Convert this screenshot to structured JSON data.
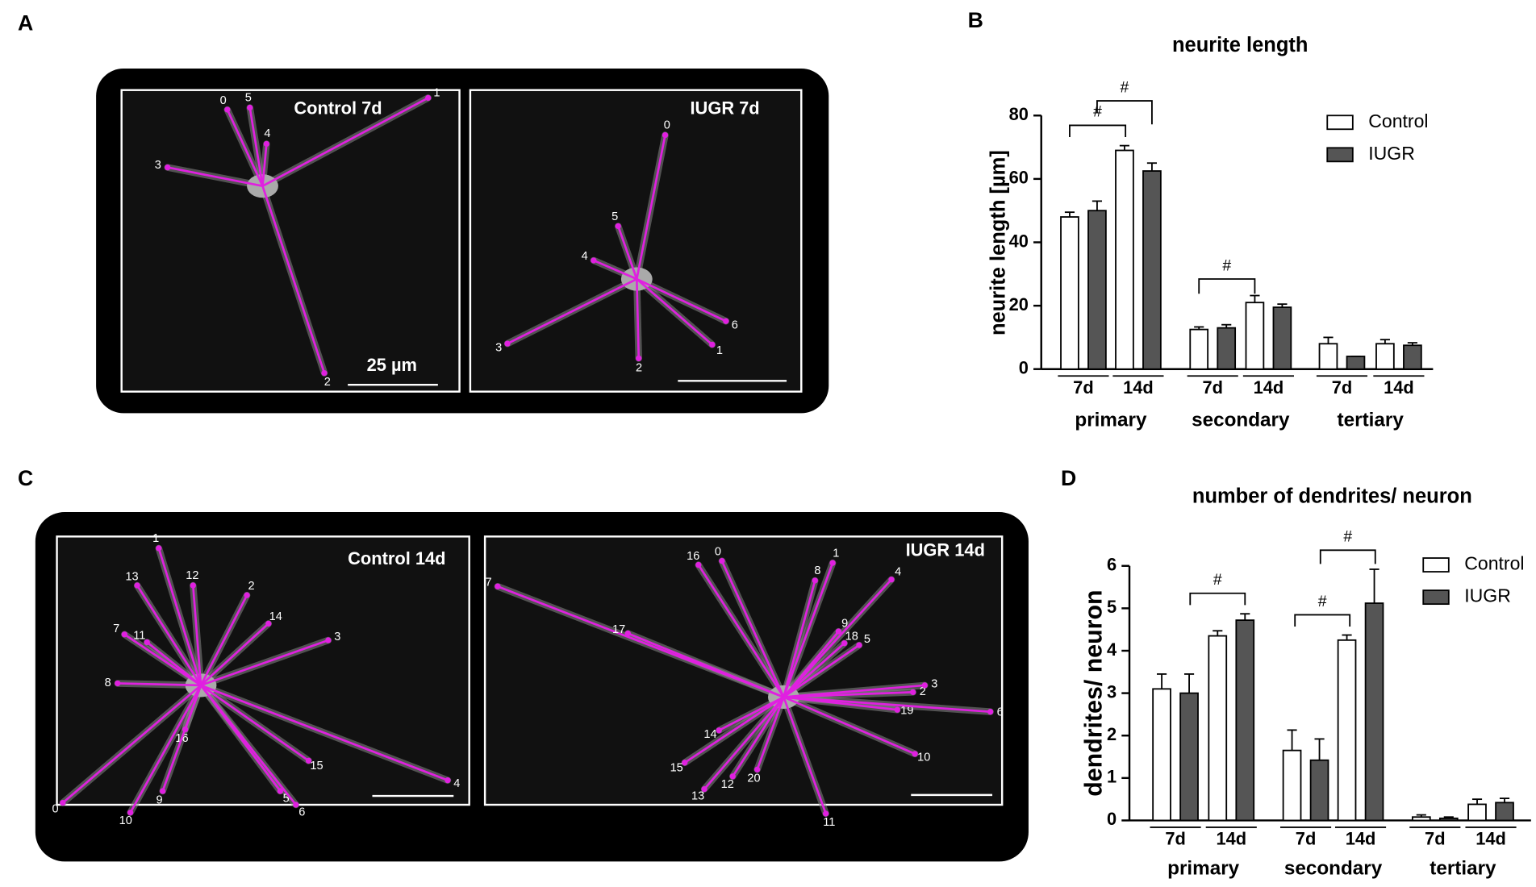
{
  "panels": {
    "A": {
      "letter": "A",
      "images": [
        {
          "label": "Control 7d",
          "scale": "25 µm",
          "nodes": [
            "0",
            "5",
            "1",
            "4",
            "3",
            "2"
          ]
        },
        {
          "label": "IUGR 7d",
          "nodes": [
            "0",
            "5",
            "4",
            "3",
            "2",
            "6",
            "1"
          ]
        }
      ]
    },
    "C": {
      "letter": "C",
      "images": [
        {
          "label": "Control 14d",
          "nodes": [
            "1",
            "13",
            "12",
            "2",
            "14",
            "7",
            "11",
            "3",
            "8",
            "16",
            "15",
            "9",
            "5",
            "6",
            "0",
            "10",
            "4"
          ]
        },
        {
          "label": "IUGR 14d",
          "nodes": [
            "16",
            "0",
            "1",
            "8",
            "4",
            "7",
            "17",
            "9",
            "18",
            "5",
            "2",
            "3",
            "19",
            "6",
            "10",
            "14",
            "15",
            "13",
            "12",
            "20",
            "11"
          ]
        }
      ]
    }
  },
  "chart_data": [
    {
      "type": "bar",
      "panel_label": "B",
      "title": "neurite length",
      "y_label": "neurite length [µm]",
      "categories": [
        "7d",
        "14d",
        "7d",
        "14d",
        "7d",
        "14d"
      ],
      "groups": [
        "primary",
        "secondary",
        "tertiary"
      ],
      "series": [
        {
          "name": "Control",
          "color": "#ffffff",
          "values": [
            48,
            69,
            12.5,
            21,
            8,
            8
          ],
          "errors": [
            1.5,
            1.5,
            0.8,
            2.2,
            2,
            1.3
          ]
        },
        {
          "name": "IUGR",
          "color": "#555555",
          "values": [
            50,
            62.5,
            13,
            19.5,
            4,
            7.5
          ],
          "errors": [
            3,
            2.5,
            1,
            1,
            0,
            0.8
          ]
        }
      ],
      "annotations": [
        "#",
        "#",
        "#"
      ],
      "ylim": [
        0,
        80
      ],
      "yticks": [
        0,
        20,
        40,
        60,
        80
      ],
      "grid": false,
      "legend": "top-right"
    },
    {
      "type": "bar",
      "panel_label": "D",
      "title": "number of dendrites/ neuron",
      "y_label": "dendrites/ neuron",
      "categories": [
        "7d",
        "14d",
        "7d",
        "14d",
        "7d",
        "14d"
      ],
      "groups": [
        "primary",
        "secondary",
        "tertiary"
      ],
      "series": [
        {
          "name": "Control",
          "color": "#ffffff",
          "values": [
            3.1,
            4.35,
            1.65,
            4.25,
            0.08,
            0.38
          ],
          "errors": [
            0.35,
            0.12,
            0.48,
            0.12,
            0.05,
            0.12
          ]
        },
        {
          "name": "IUGR",
          "color": "#555555",
          "values": [
            3.0,
            4.72,
            1.42,
            5.12,
            0.05,
            0.42
          ],
          "errors": [
            0.45,
            0.15,
            0.5,
            0.8,
            0.03,
            0.1
          ]
        }
      ],
      "annotations": [
        "#",
        "#",
        "#"
      ],
      "ylim": [
        0,
        6
      ],
      "yticks": [
        0,
        1,
        2,
        3,
        4,
        5,
        6
      ],
      "grid": false,
      "legend": "top-right"
    }
  ]
}
